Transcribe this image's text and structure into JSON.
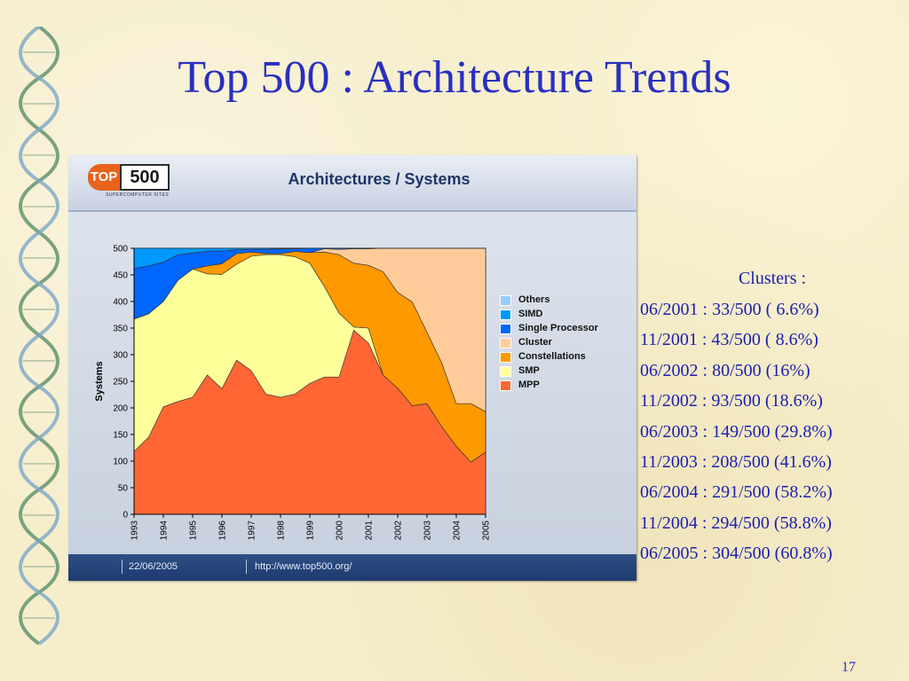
{
  "slide": {
    "title": "Top 500 : Architecture Trends",
    "page_number": "17"
  },
  "chart_panel": {
    "logo_text": "TOP500",
    "logo_subtext": "SUPERCOMPUTER SITES",
    "header_title": "Architectures / Systems",
    "footer_date": "22/06/2005",
    "footer_url": "http://www.top500.org/"
  },
  "clusters": {
    "heading": "Clusters :",
    "rows": [
      "06/2001 :  33/500  ( 6.6%)",
      "11/2001 :  43/500  ( 8.6%)",
      "06/2002 :  80/500  (16%)",
      "11/2002 :  93/500  (18.6%)",
      "06/2003 : 149/500 (29.8%)",
      "11/2003 : 208/500 (41.6%)",
      "06/2004 : 291/500 (58.2%)",
      "11/2004 : 294/500 (58.8%)",
      "06/2005 : 304/500 (60.8%)"
    ]
  },
  "chart_data": {
    "type": "area",
    "stacked": true,
    "ylabel": "Systems",
    "xlabel": "",
    "ylim": [
      0,
      500
    ],
    "yticks": [
      0,
      50,
      100,
      150,
      200,
      250,
      300,
      350,
      400,
      450,
      500
    ],
    "xticks": [
      "1993",
      "1994",
      "1995",
      "1996",
      "1997",
      "1998",
      "1999",
      "2000",
      "2001",
      "2002",
      "2003",
      "2004",
      "2005"
    ],
    "x": [
      1993.0,
      1993.5,
      1994.0,
      1994.5,
      1995.0,
      1995.5,
      1996.0,
      1996.5,
      1997.0,
      1997.5,
      1998.0,
      1998.5,
      1999.0,
      1999.5,
      2000.0,
      2000.5,
      2001.0,
      2001.5,
      2002.0,
      2002.5,
      2003.0,
      2003.5,
      2004.0,
      2004.5,
      2005.0
    ],
    "series": [
      {
        "name": "MPP",
        "color": "#ff6633",
        "values": [
          118,
          145,
          202,
          212,
          220,
          262,
          236,
          290,
          270,
          226,
          220,
          226,
          246,
          258,
          258,
          346,
          322,
          262,
          237,
          204,
          208,
          165,
          128,
          98,
          117
        ]
      },
      {
        "name": "SMP",
        "color": "#ffff99",
        "values": [
          249,
          232,
          198,
          228,
          241,
          190,
          215,
          180,
          215,
          262,
          268,
          258,
          226,
          170,
          120,
          6,
          28,
          0,
          0,
          0,
          0,
          0,
          0,
          0,
          0
        ]
      },
      {
        "name": "Constellations",
        "color": "#ff9900",
        "values": [
          0,
          0,
          0,
          0,
          0,
          15,
          20,
          20,
          8,
          2,
          2,
          10,
          20,
          65,
          110,
          120,
          118,
          194,
          180,
          195,
          134,
          120,
          80,
          110,
          76
        ]
      },
      {
        "name": "Cluster",
        "color": "#ffcc99",
        "values": [
          0,
          0,
          0,
          0,
          0,
          0,
          0,
          0,
          0,
          0,
          0,
          0,
          0,
          6,
          10,
          27,
          31,
          44,
          83,
          101,
          158,
          215,
          292,
          292,
          307
        ]
      },
      {
        "name": "Single Processor",
        "color": "#0066ff",
        "values": [
          95,
          90,
          74,
          48,
          30,
          28,
          24,
          7,
          5,
          8,
          9,
          5,
          8,
          1,
          2,
          1,
          1,
          0,
          0,
          0,
          0,
          0,
          0,
          0,
          0
        ]
      },
      {
        "name": "SIMD",
        "color": "#0099ff",
        "values": [
          38,
          33,
          26,
          12,
          9,
          5,
          5,
          3,
          2,
          2,
          1,
          1,
          0,
          0,
          0,
          0,
          0,
          0,
          0,
          0,
          0,
          0,
          0,
          0,
          0
        ]
      },
      {
        "name": "Others",
        "color": "#99ccff",
        "values": [
          0,
          0,
          0,
          0,
          0,
          0,
          0,
          0,
          0,
          0,
          0,
          0,
          0,
          0,
          0,
          0,
          0,
          0,
          0,
          0,
          0,
          0,
          0,
          0,
          0
        ]
      }
    ],
    "legend_order": [
      "Others",
      "SIMD",
      "Single Processor",
      "Cluster",
      "Constellations",
      "SMP",
      "MPP"
    ],
    "legend_position": "right",
    "grid": false
  }
}
